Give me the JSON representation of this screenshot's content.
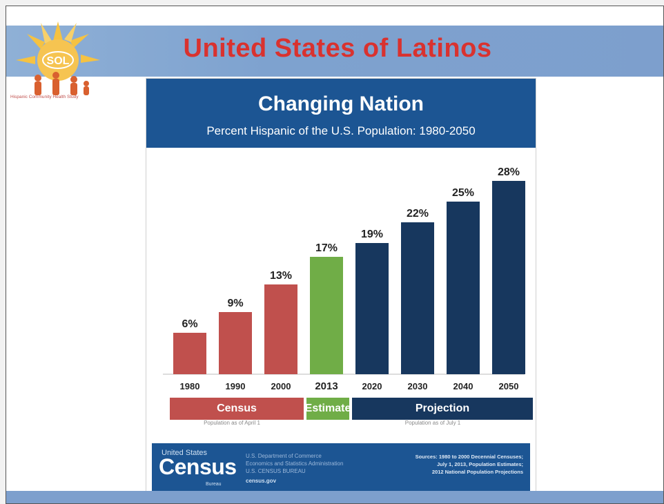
{
  "slide": {
    "title": "United States of Latinos",
    "logo_text": "SOL",
    "logo_caption": "Hispanic Community Health Study",
    "banner_color": "#7d9fcd",
    "title_color": "#d9322f"
  },
  "chart_data": {
    "type": "bar",
    "title": "Changing Nation",
    "subtitle": "Percent Hispanic of the U.S. Population: 1980-2050",
    "categories": [
      "1980",
      "1990",
      "2000",
      "2013",
      "2020",
      "2030",
      "2040",
      "2050"
    ],
    "values": [
      6,
      9,
      13,
      17,
      19,
      22,
      25,
      28
    ],
    "data_labels": [
      "6%",
      "9%",
      "13%",
      "17%",
      "19%",
      "22%",
      "25%",
      "28%"
    ],
    "bar_colors": [
      "#c0504d",
      "#c0504d",
      "#c0504d",
      "#70ad47",
      "#17375e",
      "#17375e",
      "#17375e",
      "#17375e"
    ],
    "ylim": [
      0,
      30
    ],
    "xlabel": "",
    "ylabel": "",
    "grid": false,
    "legend_bands": [
      {
        "label": "Census",
        "color": "#c0504d",
        "categories": [
          "1980",
          "1990",
          "2000"
        ]
      },
      {
        "label": "Estimate",
        "color": "#70ad47",
        "categories": [
          "2013"
        ]
      },
      {
        "label": "Projection",
        "color": "#17375e",
        "categories": [
          "2020",
          "2030",
          "2040",
          "2050"
        ]
      }
    ],
    "band_notes": [
      "Population as of April 1",
      "Population as of July 1"
    ]
  },
  "footer": {
    "logo_top": "United States",
    "logo": "Census",
    "logo_bottom": "Bureau",
    "dept_lines": [
      "U.S. Department of Commerce",
      "Economics and Statistics Administration",
      "U.S. CENSUS BUREAU"
    ],
    "url": "census.gov",
    "sources": [
      "Sources: 1980 to 2000 Decennial Censuses;",
      "July 1, 2013, Population Estimates;",
      "2012 National Population Projections"
    ]
  }
}
